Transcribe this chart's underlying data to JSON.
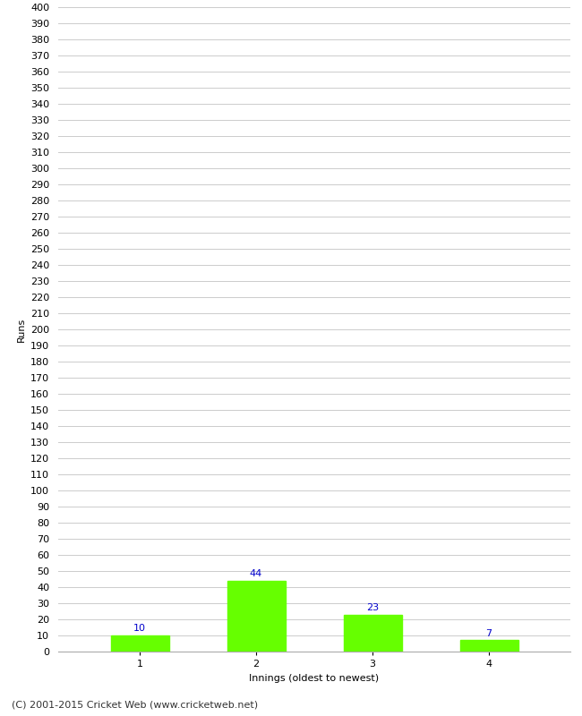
{
  "categories": [
    1,
    2,
    3,
    4
  ],
  "values": [
    10,
    44,
    23,
    7
  ],
  "bar_color": "#66ff00",
  "bar_edge_color": "#66ff00",
  "xlabel": "Innings (oldest to newest)",
  "ylabel": "Runs",
  "ylim": [
    0,
    400
  ],
  "ytick_step": 10,
  "background_color": "#ffffff",
  "grid_color": "#cccccc",
  "label_color": "#0000cc",
  "footer": "(C) 2001-2015 Cricket Web (www.cricketweb.net)",
  "label_fontsize": 8,
  "axis_fontsize": 8,
  "footer_fontsize": 8,
  "bar_width": 0.5
}
